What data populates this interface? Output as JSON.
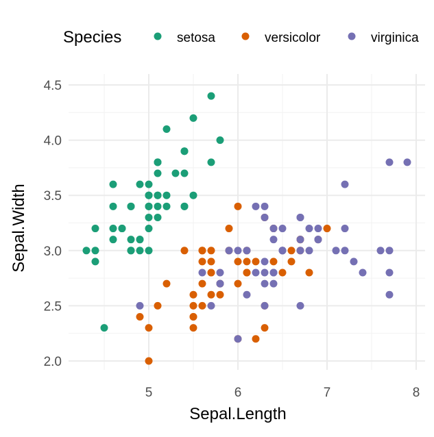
{
  "chart_data": {
    "type": "scatter",
    "title": "",
    "xlabel": "Sepal.Length",
    "ylabel": "Sepal.Width",
    "xlim": [
      4.2,
      8.05
    ],
    "ylim": [
      1.92,
      4.58
    ],
    "xticks": [
      5,
      6,
      7,
      8
    ],
    "yticks": [
      2.0,
      2.5,
      3.0,
      3.5,
      4.0,
      4.5
    ],
    "ytick_labels": [
      "2.0",
      "2.5",
      "3.0",
      "3.5",
      "4.0",
      "4.5"
    ],
    "xtick_labels": [
      "5",
      "6",
      "7",
      "8"
    ],
    "grid": true,
    "legend": {
      "title": "Species",
      "placement": "top"
    },
    "series": [
      {
        "name": "setosa",
        "color": "#1B9E77",
        "points": [
          [
            5.1,
            3.5
          ],
          [
            4.9,
            3.0
          ],
          [
            4.7,
            3.2
          ],
          [
            4.6,
            3.1
          ],
          [
            5.0,
            3.6
          ],
          [
            5.4,
            3.9
          ],
          [
            4.6,
            3.4
          ],
          [
            5.0,
            3.4
          ],
          [
            4.4,
            2.9
          ],
          [
            4.9,
            3.1
          ],
          [
            5.4,
            3.7
          ],
          [
            4.8,
            3.4
          ],
          [
            4.8,
            3.0
          ],
          [
            4.3,
            3.0
          ],
          [
            5.8,
            4.0
          ],
          [
            5.7,
            4.4
          ],
          [
            5.4,
            3.9
          ],
          [
            5.1,
            3.5
          ],
          [
            5.7,
            3.8
          ],
          [
            5.1,
            3.8
          ],
          [
            5.4,
            3.4
          ],
          [
            5.1,
            3.7
          ],
          [
            4.6,
            3.6
          ],
          [
            5.1,
            3.3
          ],
          [
            4.8,
            3.4
          ],
          [
            5.0,
            3.0
          ],
          [
            5.0,
            3.4
          ],
          [
            5.2,
            3.5
          ],
          [
            5.2,
            3.4
          ],
          [
            4.7,
            3.2
          ],
          [
            4.8,
            3.1
          ],
          [
            5.4,
            3.4
          ],
          [
            5.2,
            4.1
          ],
          [
            5.5,
            4.2
          ],
          [
            4.9,
            3.1
          ],
          [
            5.0,
            3.2
          ],
          [
            5.5,
            3.5
          ],
          [
            4.9,
            3.6
          ],
          [
            4.4,
            3.0
          ],
          [
            5.1,
            3.4
          ],
          [
            5.0,
            3.5
          ],
          [
            4.5,
            2.3
          ],
          [
            4.4,
            3.2
          ],
          [
            5.0,
            3.5
          ],
          [
            5.1,
            3.8
          ],
          [
            4.8,
            3.0
          ],
          [
            5.1,
            3.8
          ],
          [
            4.6,
            3.2
          ],
          [
            5.3,
            3.7
          ],
          [
            5.0,
            3.3
          ]
        ]
      },
      {
        "name": "versicolor",
        "color": "#D95F02",
        "points": [
          [
            7.0,
            3.2
          ],
          [
            6.4,
            3.2
          ],
          [
            6.9,
            3.1
          ],
          [
            5.5,
            2.3
          ],
          [
            6.5,
            2.8
          ],
          [
            5.7,
            2.8
          ],
          [
            6.3,
            3.3
          ],
          [
            4.9,
            2.4
          ],
          [
            6.6,
            2.9
          ],
          [
            5.2,
            2.7
          ],
          [
            5.0,
            2.0
          ],
          [
            5.9,
            3.0
          ],
          [
            6.0,
            2.2
          ],
          [
            6.1,
            2.9
          ],
          [
            5.6,
            2.9
          ],
          [
            6.7,
            3.1
          ],
          [
            5.6,
            3.0
          ],
          [
            5.8,
            2.7
          ],
          [
            6.2,
            2.2
          ],
          [
            5.6,
            2.5
          ],
          [
            5.9,
            3.2
          ],
          [
            6.1,
            2.8
          ],
          [
            6.3,
            2.5
          ],
          [
            6.1,
            2.8
          ],
          [
            6.4,
            2.9
          ],
          [
            6.6,
            3.0
          ],
          [
            6.8,
            2.8
          ],
          [
            6.7,
            3.0
          ],
          [
            6.0,
            2.9
          ],
          [
            5.7,
            2.6
          ],
          [
            5.5,
            2.4
          ],
          [
            5.5,
            2.4
          ],
          [
            5.8,
            2.7
          ],
          [
            6.0,
            2.7
          ],
          [
            5.4,
            3.0
          ],
          [
            6.0,
            3.4
          ],
          [
            6.7,
            3.1
          ],
          [
            6.3,
            2.3
          ],
          [
            5.6,
            3.0
          ],
          [
            5.5,
            2.5
          ],
          [
            5.5,
            2.6
          ],
          [
            6.1,
            3.0
          ],
          [
            5.8,
            2.6
          ],
          [
            5.0,
            2.3
          ],
          [
            5.6,
            2.7
          ],
          [
            5.7,
            3.0
          ],
          [
            5.7,
            2.9
          ],
          [
            6.2,
            2.9
          ],
          [
            5.1,
            2.5
          ],
          [
            5.7,
            2.8
          ]
        ]
      },
      {
        "name": "virginica",
        "color": "#7570B3",
        "points": [
          [
            6.3,
            3.3
          ],
          [
            5.8,
            2.7
          ],
          [
            7.1,
            3.0
          ],
          [
            6.3,
            2.9
          ],
          [
            6.5,
            3.0
          ],
          [
            7.6,
            3.0
          ],
          [
            4.9,
            2.5
          ],
          [
            7.3,
            2.9
          ],
          [
            6.7,
            2.5
          ],
          [
            7.2,
            3.6
          ],
          [
            6.5,
            3.2
          ],
          [
            6.4,
            2.7
          ],
          [
            6.8,
            3.0
          ],
          [
            5.7,
            2.5
          ],
          [
            5.8,
            2.8
          ],
          [
            6.4,
            3.2
          ],
          [
            6.5,
            3.0
          ],
          [
            7.7,
            3.8
          ],
          [
            7.7,
            2.6
          ],
          [
            6.0,
            2.2
          ],
          [
            6.9,
            3.2
          ],
          [
            5.6,
            2.8
          ],
          [
            7.7,
            2.8
          ],
          [
            6.3,
            2.7
          ],
          [
            6.7,
            3.3
          ],
          [
            7.2,
            3.2
          ],
          [
            6.2,
            2.8
          ],
          [
            6.1,
            3.0
          ],
          [
            6.4,
            2.8
          ],
          [
            7.2,
            3.0
          ],
          [
            7.4,
            2.8
          ],
          [
            7.9,
            3.8
          ],
          [
            6.4,
            2.8
          ],
          [
            6.3,
            2.8
          ],
          [
            6.1,
            2.6
          ],
          [
            7.7,
            3.0
          ],
          [
            6.3,
            3.4
          ],
          [
            6.4,
            3.1
          ],
          [
            6.0,
            3.0
          ],
          [
            6.9,
            3.1
          ],
          [
            6.7,
            3.1
          ],
          [
            6.9,
            3.1
          ],
          [
            5.8,
            2.7
          ],
          [
            6.8,
            3.2
          ],
          [
            6.7,
            3.3
          ],
          [
            6.7,
            3.0
          ],
          [
            6.3,
            2.5
          ],
          [
            6.5,
            3.0
          ],
          [
            6.2,
            3.4
          ],
          [
            5.9,
            3.0
          ]
        ]
      }
    ]
  }
}
